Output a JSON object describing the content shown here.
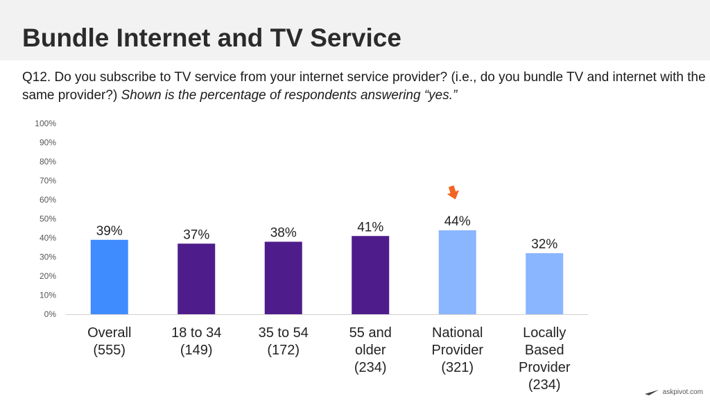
{
  "header": {
    "title": "Bundle Internet and TV Service"
  },
  "question": {
    "text": "Q12. Do you subscribe to TV service from your internet service provider?  (i.e., do you bundle TV and internet with the same provider?) ",
    "note": "Shown is the percentage of respondents answering “yes.”"
  },
  "footer": {
    "brand": "askpivot.com"
  },
  "chart_data": {
    "type": "bar",
    "ylim": [
      0,
      100
    ],
    "y_ticks": [
      "0%",
      "10%",
      "20%",
      "30%",
      "40%",
      "50%",
      "60%",
      "70%",
      "80%",
      "90%",
      "100%"
    ],
    "grid": false,
    "categories": [
      [
        "Overall",
        "(555)"
      ],
      [
        "18 to 34",
        "(149)"
      ],
      [
        "35 to 54",
        "(172)"
      ],
      [
        "55 and",
        "older",
        "(234)"
      ],
      [
        "National",
        "Provider",
        "(321)"
      ],
      [
        "Locally",
        "Based",
        "Provider",
        "(234)"
      ]
    ],
    "values": [
      39,
      37,
      38,
      41,
      44,
      32
    ],
    "value_labels": [
      "39%",
      "37%",
      "38%",
      "41%",
      "44%",
      "32%"
    ],
    "bar_colors": [
      "#3f8cff",
      "#4f1d8b",
      "#4f1d8b",
      "#4f1d8b",
      "#8ab6ff",
      "#8ab6ff"
    ],
    "highlight_index": 4,
    "highlight_color": "#f26522"
  }
}
